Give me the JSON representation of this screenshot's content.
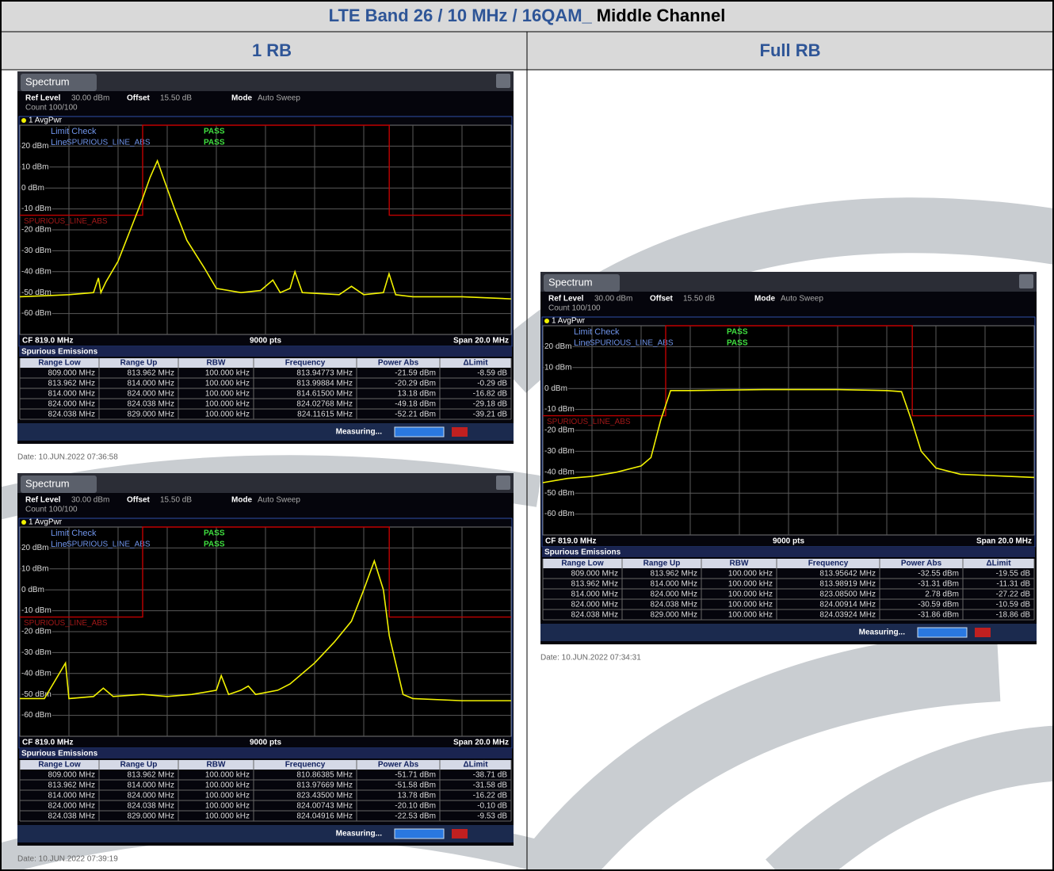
{
  "header": {
    "title": "LTE Band 26 / 10 MHz / 16QAM_",
    "title_suffix": "Middle Channel"
  },
  "columns": [
    "1 RB",
    "Full RB"
  ],
  "screens": [
    {
      "tab": "Spectrum",
      "ref_level_label": "Ref Level",
      "ref_level": "30.00 dBm",
      "offset_label": "Offset",
      "offset": "15.50 dB",
      "mode_label": "Mode",
      "mode": "Auto Sweep",
      "count": "Count 100/100",
      "limit_check": "Limit Check",
      "line_label": "Line",
      "line_name": "SPURIOUS_LINE_ABS",
      "check_result": "PASS",
      "line_result": "PASS",
      "chart": {
        "type": "line",
        "xlim": [
          809,
          829
        ],
        "ylim": [
          -70,
          30
        ],
        "grid": true,
        "yticks": [
          {
            "value": 20,
            "label": "20 dBm"
          },
          {
            "value": 10,
            "label": "10 dBm"
          },
          {
            "value": 0,
            "label": "0 dBm"
          },
          {
            "value": -10,
            "label": "-10 dBm"
          },
          {
            "value": -20,
            "label": "-20 dBm"
          },
          {
            "value": -30,
            "label": "-30 dBm"
          },
          {
            "value": -40,
            "label": "-40 dBm"
          },
          {
            "value": -50,
            "label": "-50 dBm"
          },
          {
            "value": -60,
            "label": "-60 dBm"
          }
        ],
        "series": [
          {
            "name": "1 AvgPwr",
            "color": "#f2f200",
            "x": [
              809,
              810,
              811,
              812,
              812.2,
              812.3,
              812.5,
              813,
              813.5,
              814,
              814.3,
              814.6,
              814.9,
              815.3,
              815.8,
              816.5,
              817,
              818,
              818.8,
              819.3,
              819.6,
              820,
              820.2,
              820.5,
              822,
              822.5,
              823,
              823.8,
              824.03,
              824.3,
              825,
              827,
              829
            ],
            "values": [
              -52,
              -51.5,
              -51,
              -50,
              -43,
              -50,
              -45,
              -35,
              -20,
              -5,
              5,
              13,
              3,
              -10,
              -25,
              -38,
              -48,
              -50,
              -49,
              -44,
              -50,
              -48,
              -40,
              -50,
              -51,
              -47,
              -51,
              -50,
              -41,
              -51,
              -52,
              -52,
              -53
            ]
          },
          {
            "name": "SPURIOUS_LINE_ABS",
            "color": "#c00000",
            "x": [
              809,
              814,
              814,
              824.038,
              824.038,
              829
            ],
            "values": [
              -13,
              -13,
              30,
              30,
              -13,
              -13
            ]
          }
        ]
      },
      "cf": "CF 819.0 MHz",
      "pts": "9000 pts",
      "span": "Span 20.0 MHz",
      "table": {
        "title": "Spurious Emissions",
        "headers": [
          "Range Low",
          "Range Up",
          "RBW",
          "Frequency",
          "Power Abs",
          "ΔLimit"
        ],
        "rows": [
          [
            "809.000 MHz",
            "813.962 MHz",
            "100.000 kHz",
            "813.94773 MHz",
            "-21.59 dBm",
            "-8.59 dB"
          ],
          [
            "813.962 MHz",
            "814.000 MHz",
            "100.000 kHz",
            "813.99884 MHz",
            "-20.29 dBm",
            "-0.29 dB"
          ],
          [
            "814.000 MHz",
            "824.000 MHz",
            "100.000 kHz",
            "814.61500 MHz",
            "13.18 dBm",
            "-16.82 dB"
          ],
          [
            "824.000 MHz",
            "824.038 MHz",
            "100.000 kHz",
            "824.02768 MHz",
            "-49.18 dBm",
            "-29.18 dB"
          ],
          [
            "824.038 MHz",
            "829.000 MHz",
            "100.000 kHz",
            "824.11615 MHz",
            "-52.21 dBm",
            "-39.21 dB"
          ]
        ]
      },
      "status": "Measuring...",
      "date": "Date: 10.JUN.2022  07:36:58"
    },
    {
      "tab": "Spectrum",
      "ref_level_label": "Ref Level",
      "ref_level": "30.00 dBm",
      "offset_label": "Offset",
      "offset": "15.50 dB",
      "mode_label": "Mode",
      "mode": "Auto Sweep",
      "count": "Count 100/100",
      "limit_check": "Limit Check",
      "line_label": "Line",
      "line_name": "SPURIOUS_LINE_ABS",
      "check_result": "PASS",
      "line_result": "PASS",
      "chart": {
        "type": "line",
        "xlim": [
          809,
          829
        ],
        "ylim": [
          -70,
          30
        ],
        "grid": true,
        "yticks": [
          {
            "value": 20,
            "label": "20 dBm"
          },
          {
            "value": 10,
            "label": "10 dBm"
          },
          {
            "value": 0,
            "label": "0 dBm"
          },
          {
            "value": -10,
            "label": "-10 dBm"
          },
          {
            "value": -20,
            "label": "-20 dBm"
          },
          {
            "value": -30,
            "label": "-30 dBm"
          },
          {
            "value": -40,
            "label": "-40 dBm"
          },
          {
            "value": -50,
            "label": "-50 dBm"
          },
          {
            "value": -60,
            "label": "-60 dBm"
          }
        ],
        "series": [
          {
            "name": "1 AvgPwr",
            "color": "#f2f200",
            "x": [
              809,
              810,
              810.86,
              811,
              812,
              812.4,
              812.8,
              814,
              815,
              816,
              817,
              817.2,
              817.5,
              818,
              818.3,
              818.6,
              819.5,
              820,
              821,
              821.8,
              822.5,
              823,
              823.43,
              823.8,
              824.04,
              824.3,
              824.6,
              825,
              827,
              829
            ],
            "values": [
              -52,
              -52,
              -35,
              -52,
              -51,
              -47,
              -51,
              -50,
              -51,
              -50,
              -48,
              -41,
              -50,
              -48,
              -46,
              -50,
              -48,
              -45,
              -35,
              -25,
              -15,
              0,
              13.8,
              0,
              -22,
              -35,
              -50,
              -52,
              -53,
              -53
            ]
          },
          {
            "name": "SPURIOUS_LINE_ABS",
            "color": "#c00000",
            "x": [
              809,
              814,
              814,
              824.038,
              824.038,
              829
            ],
            "values": [
              -13,
              -13,
              30,
              30,
              -13,
              -13
            ]
          }
        ]
      },
      "cf": "CF 819.0 MHz",
      "pts": "9000 pts",
      "span": "Span 20.0 MHz",
      "table": {
        "title": "Spurious Emissions",
        "headers": [
          "Range Low",
          "Range Up",
          "RBW",
          "Frequency",
          "Power Abs",
          "ΔLimit"
        ],
        "rows": [
          [
            "809.000 MHz",
            "813.962 MHz",
            "100.000 kHz",
            "810.86385 MHz",
            "-51.71 dBm",
            "-38.71 dB"
          ],
          [
            "813.962 MHz",
            "814.000 MHz",
            "100.000 kHz",
            "813.97669 MHz",
            "-51.58 dBm",
            "-31.58 dB"
          ],
          [
            "814.000 MHz",
            "824.000 MHz",
            "100.000 kHz",
            "823.43500 MHz",
            "13.78 dBm",
            "-16.22 dB"
          ],
          [
            "824.000 MHz",
            "824.038 MHz",
            "100.000 kHz",
            "824.00743 MHz",
            "-20.10 dBm",
            "-0.10 dB"
          ],
          [
            "824.038 MHz",
            "829.000 MHz",
            "100.000 kHz",
            "824.04916 MHz",
            "-22.53 dBm",
            "-9.53 dB"
          ]
        ]
      },
      "status": "Measuring...",
      "date": "Date: 10.JUN.2022  07:39:19"
    },
    {
      "tab": "Spectrum",
      "ref_level_label": "Ref Level",
      "ref_level": "30.00 dBm",
      "offset_label": "Offset",
      "offset": "15.50 dB",
      "mode_label": "Mode",
      "mode": "Auto Sweep",
      "count": "Count 100/100",
      "limit_check": "Limit Check",
      "line_label": "Line",
      "line_name": "SPURIOUS_LINE_ABS",
      "check_result": "PASS",
      "line_result": "PASS",
      "chart": {
        "type": "line",
        "xlim": [
          809,
          829
        ],
        "ylim": [
          -70,
          30
        ],
        "grid": true,
        "yticks": [
          {
            "value": 20,
            "label": "20 dBm"
          },
          {
            "value": 10,
            "label": "10 dBm"
          },
          {
            "value": 0,
            "label": "0 dBm"
          },
          {
            "value": -10,
            "label": "-10 dBm"
          },
          {
            "value": -20,
            "label": "-20 dBm"
          },
          {
            "value": -30,
            "label": "-30 dBm"
          },
          {
            "value": -40,
            "label": "-40 dBm"
          },
          {
            "value": -50,
            "label": "-50 dBm"
          },
          {
            "value": -60,
            "label": "-60 dBm"
          }
        ],
        "series": [
          {
            "name": "1 AvgPwr",
            "color": "#f2f200",
            "x": [
              809,
              810,
              811,
              812,
              813,
              813.4,
              813.8,
              814.2,
              815,
              818,
              821,
              823,
              823.6,
              824,
              824.4,
              825,
              826,
              827,
              828,
              829
            ],
            "values": [
              -45,
              -43,
              -42,
              -40,
              -37,
              -33,
              -15,
              -1,
              -1,
              -0.5,
              -0.5,
              -1,
              -1.5,
              -15,
              -30,
              -38,
              -41,
              -41.5,
              -42,
              -42.5
            ]
          },
          {
            "name": "SPURIOUS_LINE_ABS",
            "color": "#c00000",
            "x": [
              809,
              814,
              814,
              824.038,
              824.038,
              829
            ],
            "values": [
              -13,
              -13,
              30,
              30,
              -13,
              -13
            ]
          }
        ]
      },
      "cf": "CF 819.0 MHz",
      "pts": "9000 pts",
      "span": "Span 20.0 MHz",
      "table": {
        "title": "Spurious Emissions",
        "headers": [
          "Range Low",
          "Range Up",
          "RBW",
          "Frequency",
          "Power Abs",
          "ΔLimit"
        ],
        "rows": [
          [
            "809.000 MHz",
            "813.962 MHz",
            "100.000 kHz",
            "813.95642 MHz",
            "-32.55 dBm",
            "-19.55 dB"
          ],
          [
            "813.962 MHz",
            "814.000 MHz",
            "100.000 kHz",
            "813.98919 MHz",
            "-31.31 dBm",
            "-11.31 dB"
          ],
          [
            "814.000 MHz",
            "824.000 MHz",
            "100.000 kHz",
            "823.08500 MHz",
            "2.78 dBm",
            "-27.22 dB"
          ],
          [
            "824.000 MHz",
            "824.038 MHz",
            "100.000 kHz",
            "824.00914 MHz",
            "-30.59 dBm",
            "-10.59 dB"
          ],
          [
            "824.038 MHz",
            "829.000 MHz",
            "100.000 kHz",
            "824.03924 MHz",
            "-31.86 dBm",
            "-18.86 dB"
          ]
        ]
      },
      "status": "Measuring...",
      "date": "Date: 10.JUN.2022  07:34:31"
    }
  ]
}
